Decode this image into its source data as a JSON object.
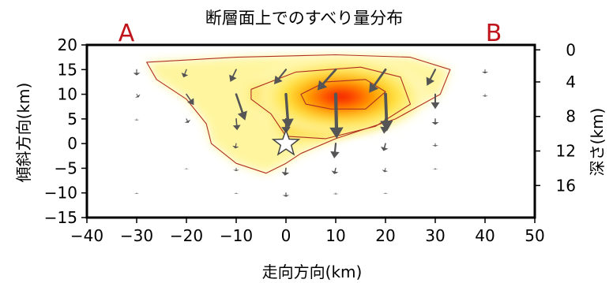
{
  "chart_data": {
    "type": "heatmap",
    "title": "断層面上でのすべり量分布",
    "xlabel": "走向方向(km)",
    "ylabel_left": "傾斜方向(km)",
    "ylabel_right": "深さ(km)",
    "end_labels": [
      "A",
      "B"
    ],
    "xlim": [
      -40,
      50
    ],
    "ylim": [
      -15,
      20
    ],
    "xticks": [
      -40,
      -30,
      -20,
      -10,
      0,
      10,
      20,
      30,
      40,
      50
    ],
    "yticks": [
      -15,
      -10,
      -5,
      0,
      5,
      10,
      15,
      20
    ],
    "depth_ticks": [
      {
        "depth": 0,
        "y": 19
      },
      {
        "depth": 4,
        "y": 12.5
      },
      {
        "depth": 8,
        "y": 5.5
      },
      {
        "depth": 12,
        "y": -1.5
      },
      {
        "depth": 16,
        "y": -8.5
      }
    ],
    "hypocenter": {
      "x": 0,
      "y": 0
    },
    "contours": [
      {
        "level": 1,
        "points": [
          [
            -28,
            16.5
          ],
          [
            -10,
            17.5
          ],
          [
            10,
            18
          ],
          [
            25,
            17.5
          ],
          [
            33,
            15
          ],
          [
            31,
            10
          ],
          [
            22,
            5
          ],
          [
            10,
            1
          ],
          [
            3,
            -2
          ],
          [
            0,
            -4
          ],
          [
            -4,
            -6
          ],
          [
            -10,
            -4
          ],
          [
            -15,
            0
          ],
          [
            -16,
            4
          ],
          [
            -20,
            9
          ],
          [
            -26,
            13
          ]
        ]
      },
      {
        "level": 2,
        "points": [
          [
            -7,
            11
          ],
          [
            2,
            14.5
          ],
          [
            15,
            15.5
          ],
          [
            23,
            13.5
          ],
          [
            25,
            8
          ],
          [
            18,
            3.5
          ],
          [
            8,
            1
          ],
          [
            0,
            1.5
          ],
          [
            -3,
            6
          ],
          [
            -7,
            9
          ]
        ]
      },
      {
        "level": 3,
        "points": [
          [
            3,
            10
          ],
          [
            8,
            12.5
          ],
          [
            16,
            13
          ],
          [
            20,
            10.5
          ],
          [
            16,
            7
          ],
          [
            9,
            7
          ],
          [
            4,
            8
          ]
        ]
      }
    ],
    "slip_peak": {
      "x": 11,
      "y": 9.5
    },
    "slip_vectors": [
      {
        "x": -30,
        "y": 15,
        "dx": 0,
        "dy": -1.2,
        "w": 1.2
      },
      {
        "x": -20,
        "y": 15,
        "dx": -0.6,
        "dy": -1.6,
        "w": 1.4
      },
      {
        "x": -10,
        "y": 15,
        "dx": -1.2,
        "dy": -2.5,
        "w": 1.8
      },
      {
        "x": 0,
        "y": 15,
        "dx": -2.4,
        "dy": -3.0,
        "w": 2.2
      },
      {
        "x": 10,
        "y": 15,
        "dx": -3.7,
        "dy": -4.2,
        "w": 2.8
      },
      {
        "x": 20,
        "y": 15,
        "dx": -3.3,
        "dy": -4.7,
        "w": 2.8
      },
      {
        "x": 30,
        "y": 15,
        "dx": -1.7,
        "dy": -3.3,
        "w": 2.2
      },
      {
        "x": 40,
        "y": 15,
        "dx": 0,
        "dy": -0.8,
        "w": 1.0
      },
      {
        "x": -30,
        "y": 10,
        "dx": 0.4,
        "dy": -0.6,
        "w": 1.0
      },
      {
        "x": -20,
        "y": 10,
        "dx": 1.5,
        "dy": -2.2,
        "w": 1.6
      },
      {
        "x": -10,
        "y": 10,
        "dx": 1.8,
        "dy": -5.3,
        "w": 2.6
      },
      {
        "x": 0,
        "y": 10,
        "dx": 0.5,
        "dy": -7.0,
        "w": 3.4
      },
      {
        "x": 10,
        "y": 10,
        "dx": 0.2,
        "dy": -9.0,
        "w": 4.2
      },
      {
        "x": 20,
        "y": 10,
        "dx": 0.3,
        "dy": -7.5,
        "w": 3.8
      },
      {
        "x": 30,
        "y": 10,
        "dx": 0,
        "dy": -3.0,
        "w": 2.0
      },
      {
        "x": 40,
        "y": 10,
        "dx": 0,
        "dy": -0.5,
        "w": 0.8
      },
      {
        "x": -30,
        "y": 5,
        "dx": 0,
        "dy": -0.3,
        "w": 0.8
      },
      {
        "x": -20,
        "y": 5,
        "dx": 0.4,
        "dy": -0.8,
        "w": 1.2
      },
      {
        "x": -10,
        "y": 5,
        "dx": 0.2,
        "dy": -2.3,
        "w": 1.6
      },
      {
        "x": 0,
        "y": 5,
        "dx": 0,
        "dy": -3.0,
        "w": 2.2
      },
      {
        "x": 20,
        "y": 5,
        "dx": -0.3,
        "dy": -3.0,
        "w": 2.2
      },
      {
        "x": 30,
        "y": 5,
        "dx": 0,
        "dy": -1.2,
        "w": 1.4
      },
      {
        "x": -10,
        "y": 0,
        "dx": -0.2,
        "dy": -1.0,
        "w": 1.2
      },
      {
        "x": 10,
        "y": 0,
        "dx": -0.3,
        "dy": -3.0,
        "w": 2.2
      },
      {
        "x": 20,
        "y": 0,
        "dx": -0.4,
        "dy": -1.5,
        "w": 1.6
      },
      {
        "x": 30,
        "y": 0,
        "dx": 0,
        "dy": -0.6,
        "w": 1.0
      },
      {
        "x": -20,
        "y": -5,
        "dx": 0,
        "dy": -0.2,
        "w": 0.8
      },
      {
        "x": -10,
        "y": -5,
        "dx": 0,
        "dy": -0.6,
        "w": 1.0
      },
      {
        "x": 0,
        "y": -5,
        "dx": -0.2,
        "dy": -1.5,
        "w": 1.6
      },
      {
        "x": 10,
        "y": -5,
        "dx": -0.3,
        "dy": -1.2,
        "w": 1.4
      },
      {
        "x": 20,
        "y": -5,
        "dx": -0.2,
        "dy": -0.8,
        "w": 1.0
      },
      {
        "x": 30,
        "y": -5,
        "dx": 0,
        "dy": -0.3,
        "w": 0.8
      },
      {
        "x": -30,
        "y": -10,
        "dx": 0,
        "dy": -0.2,
        "w": 0.8
      },
      {
        "x": -10,
        "y": -10,
        "dx": 0,
        "dy": -0.2,
        "w": 0.8
      },
      {
        "x": 0,
        "y": -10,
        "dx": 0,
        "dy": -0.8,
        "w": 1.2
      },
      {
        "x": 10,
        "y": -10,
        "dx": 0,
        "dy": -0.3,
        "w": 0.8
      },
      {
        "x": 20,
        "y": -10,
        "dx": 0,
        "dy": -0.2,
        "w": 0.8
      }
    ],
    "colors": {
      "low": "#fff59a",
      "mid": "#ffd21e",
      "high": "#ff6a00",
      "peak": "#ee0000",
      "contour": "#b03020",
      "vector": "#555555",
      "frame": "#000000"
    }
  }
}
